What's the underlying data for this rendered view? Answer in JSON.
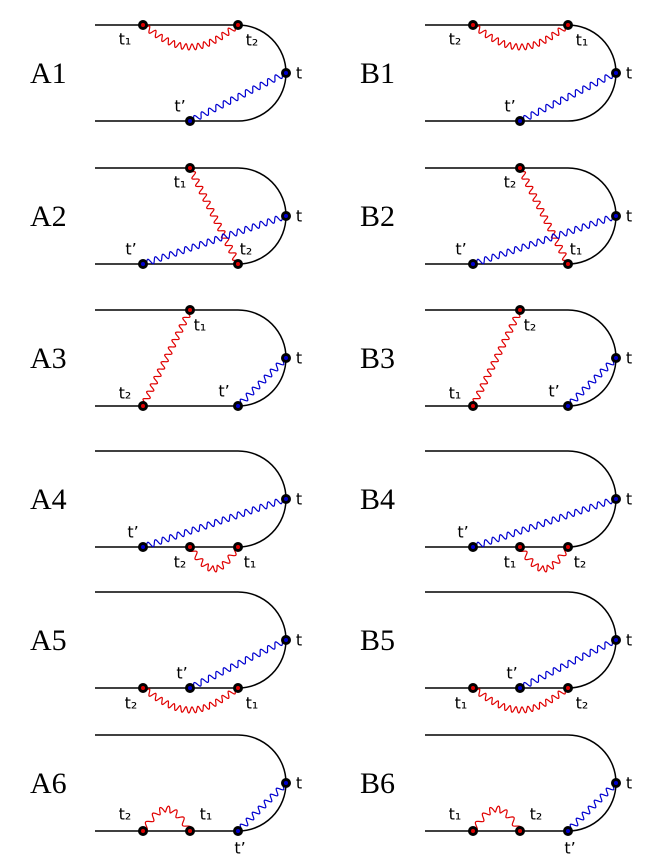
{
  "panels": [
    {
      "label": "A1",
      "t1": "t₁",
      "t2": "t₂",
      "t": "t",
      "tp": "t’"
    },
    {
      "label": "A2",
      "t1": "t₁",
      "t2": "t₂",
      "t": "t",
      "tp": "t’"
    },
    {
      "label": "A3",
      "t1": "t₁",
      "t2": "t₂",
      "t": "t",
      "tp": "t’"
    },
    {
      "label": "A4",
      "t1": "t₁",
      "t2": "t₂",
      "t": "t",
      "tp": "t’"
    },
    {
      "label": "A5",
      "t1": "t₁",
      "t2": "t₂",
      "t": "t",
      "tp": "t’"
    },
    {
      "label": "A6",
      "t1": "t₁",
      "t2": "t₂",
      "t": "t",
      "tp": "t’"
    },
    {
      "label": "B1",
      "t1": "t₁",
      "t2": "t₂",
      "t": "t",
      "tp": "t’"
    },
    {
      "label": "B2",
      "t1": "t₁",
      "t2": "t₂",
      "t": "t",
      "tp": "t’"
    },
    {
      "label": "B3",
      "t1": "t₁",
      "t2": "t₂",
      "t": "t",
      "tp": "t’"
    },
    {
      "label": "B4",
      "t1": "t₁",
      "t2": "t₂",
      "t": "t",
      "tp": "t’"
    },
    {
      "label": "B5",
      "t1": "t₁",
      "t2": "t₂",
      "t": "t",
      "tp": "t’"
    },
    {
      "label": "B6",
      "t1": "t₁",
      "t2": "t₂",
      "t": "t",
      "tp": "t’"
    }
  ]
}
